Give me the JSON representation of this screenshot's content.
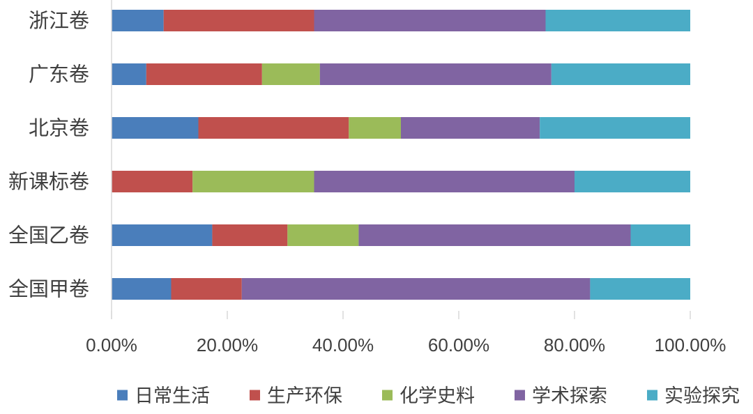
{
  "chart_data": {
    "type": "bar",
    "orientation": "horizontal",
    "stacked": "percent",
    "title": "",
    "xlabel": "",
    "ylabel": "",
    "xlim": [
      0,
      100
    ],
    "x_ticks": [
      0,
      20,
      40,
      60,
      80,
      100
    ],
    "x_tick_labels": [
      "0.00%",
      "20.00%",
      "40.00%",
      "60.00%",
      "80.00%",
      "100.00%"
    ],
    "grid": false,
    "legend_position": "bottom",
    "categories": [
      "浙江卷",
      "广东卷",
      "北京卷",
      "新课标卷",
      "全国乙卷",
      "全国甲卷"
    ],
    "series": [
      {
        "name": "日常生活",
        "color": "#4a7ebb",
        "values": [
          9,
          6,
          15,
          0,
          17.4,
          10.3
        ]
      },
      {
        "name": "生产环保",
        "color": "#c0504d",
        "values": [
          26,
          20,
          26,
          14,
          13,
          12.2
        ]
      },
      {
        "name": "化学史料",
        "color": "#9bbb59",
        "values": [
          0,
          10,
          9,
          21,
          12.3,
          0
        ]
      },
      {
        "name": "学术探索",
        "color": "#8064a2",
        "values": [
          40,
          40,
          24,
          45,
          47,
          60.2
        ]
      },
      {
        "name": "实验探究",
        "color": "#4bacc6",
        "values": [
          25,
          24,
          26,
          20,
          10.3,
          17.3
        ]
      }
    ]
  }
}
